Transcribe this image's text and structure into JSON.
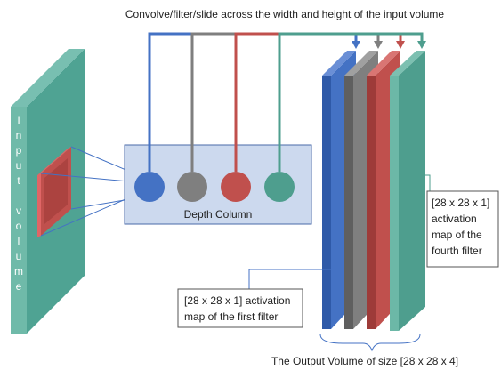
{
  "caption": "Convolve/filter/slide across the width and height of the input volume",
  "input_label": "Input volume",
  "depth_column": "Depth Column",
  "first_map": {
    "lines": [
      "[28 x 28 x 1] activation",
      "map of the first filter"
    ]
  },
  "fourth_map": {
    "lines": [
      "[28 x 28 x 1]",
      "activation",
      "map of the",
      "fourth filter"
    ]
  },
  "output_label": "The Output Volume of size [28 x 28 x 4]"
}
